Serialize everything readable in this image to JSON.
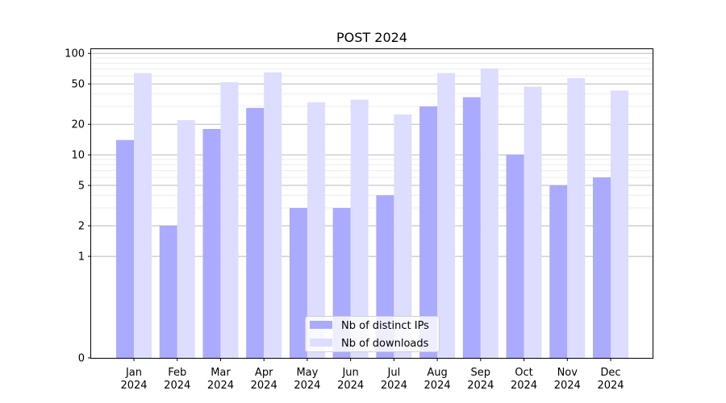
{
  "chart_data": {
    "type": "bar",
    "title": "POST 2024",
    "xlabel": "",
    "ylabel": "",
    "y_scale": "symlog",
    "ylim": [
      0,
      110
    ],
    "y_ticks": [
      0,
      1,
      2,
      5,
      10,
      20,
      50,
      100
    ],
    "y_tick_labels": [
      "0",
      "1",
      "2",
      "5",
      "10",
      "20",
      "50",
      "100"
    ],
    "categories": [
      [
        "Jan",
        "2024"
      ],
      [
        "Feb",
        "2024"
      ],
      [
        "Mar",
        "2024"
      ],
      [
        "Apr",
        "2024"
      ],
      [
        "May",
        "2024"
      ],
      [
        "Jun",
        "2024"
      ],
      [
        "Jul",
        "2024"
      ],
      [
        "Aug",
        "2024"
      ],
      [
        "Sep",
        "2024"
      ],
      [
        "Oct",
        "2024"
      ],
      [
        "Nov",
        "2024"
      ],
      [
        "Dec",
        "2024"
      ]
    ],
    "series": [
      {
        "name": "Nb of distinct IPs",
        "color": "#aaaaff",
        "values": [
          14,
          2,
          18,
          29,
          3,
          3,
          4,
          30,
          37,
          10,
          5,
          6
        ]
      },
      {
        "name": "Nb of downloads",
        "color": "#ddddff",
        "values": [
          64,
          22,
          52,
          65,
          33,
          35,
          25,
          64,
          71,
          47,
          57,
          43
        ]
      }
    ],
    "grid": true,
    "legend_position": "lower-center"
  }
}
